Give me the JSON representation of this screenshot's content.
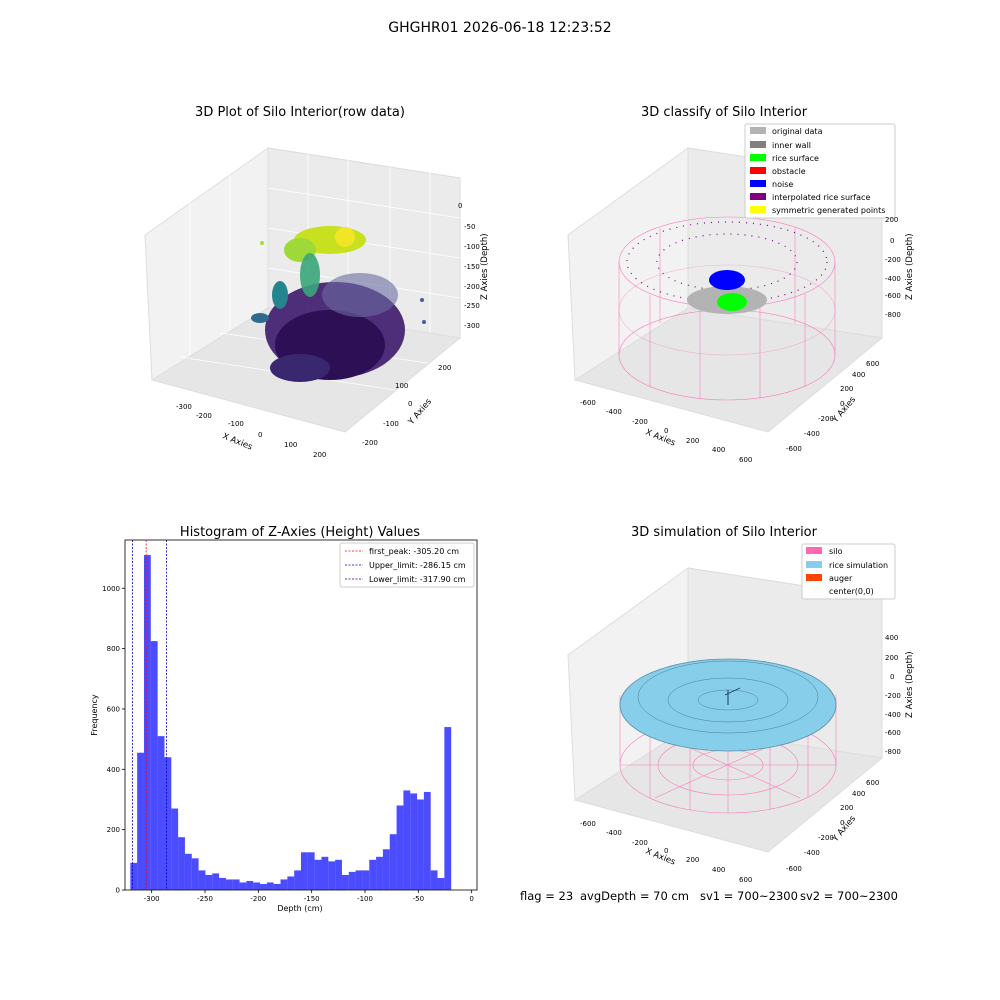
{
  "suptitle": "GHGHR01 2026-06-18 12:23:52",
  "status_text": {
    "flag": "flag = 23",
    "avg_depth": "avgDepth = 70 cm",
    "sv1": "sv1 = 700~2300",
    "sv2": "sv2 = 700~2300"
  },
  "panels": {
    "raw": {
      "title": "3D Plot of Silo Interior(row data)",
      "xlabel": "X Axies",
      "ylabel": "Y Axies",
      "zlabel": "Z Axies (Depth)",
      "xticks": [
        "-300",
        "-200",
        "-100",
        "0",
        "100",
        "200"
      ],
      "yticks": [
        "-200",
        "-100",
        "0",
        "100",
        "200"
      ],
      "zticks": [
        "0",
        "-50",
        "-100",
        "-150",
        "-200",
        "-250",
        "-300"
      ],
      "colormap": "viridis"
    },
    "classify": {
      "title": "3D classify of Silo Interior",
      "xlabel": "X Axies",
      "ylabel": "Y Axies",
      "zlabel": "Z Axies (Depth)",
      "xticks": [
        "-600",
        "-400",
        "-200",
        "0",
        "200",
        "400",
        "600"
      ],
      "yticks": [
        "-600",
        "-400",
        "-200",
        "0",
        "200",
        "400",
        "600"
      ],
      "zticks": [
        "200",
        "0",
        "-200",
        "-400",
        "-600",
        "-800"
      ],
      "legend": [
        {
          "label": "original data",
          "color": "#b3b3b3"
        },
        {
          "label": "inner wall",
          "color": "#808080"
        },
        {
          "label": "rice surface",
          "color": "#00ff00"
        },
        {
          "label": "obstacle",
          "color": "#ff0000"
        },
        {
          "label": "noise",
          "color": "#0000ff"
        },
        {
          "label": "interpolated rice surface",
          "color": "#800080"
        },
        {
          "label": "symmetric generated points",
          "color": "#ffff00"
        }
      ]
    },
    "simulation": {
      "title": "3D simulation of Silo Interior",
      "xlabel": "X Axies",
      "ylabel": "Y Axies",
      "zlabel": "Z Axies (Depth)",
      "xticks": [
        "-600",
        "-400",
        "-200",
        "0",
        "200",
        "400",
        "600"
      ],
      "yticks": [
        "-600",
        "-400",
        "-200",
        "0",
        "200",
        "400",
        "600"
      ],
      "zticks": [
        "400",
        "200",
        "0",
        "-200",
        "-400",
        "-600",
        "-800"
      ],
      "legend": [
        {
          "label": "silo",
          "color": "#ff69b4"
        },
        {
          "label": "rice simulation",
          "color": "#87ceeb"
        },
        {
          "label": "auger",
          "color": "#ff4500"
        },
        {
          "label": "center(0,0)",
          "color": ""
        }
      ]
    }
  },
  "chart_data": {
    "type": "bar",
    "title": "Histogram of Z-Axies (Height) Values",
    "xlabel": "Depth (cm)",
    "ylabel": "Frequency",
    "xlim": [
      -325,
      5
    ],
    "ylim": [
      0,
      1160
    ],
    "xticks": [
      -300,
      -250,
      -200,
      -150,
      -100,
      -50,
      0
    ],
    "yticks": [
      0,
      200,
      400,
      600,
      800,
      1000
    ],
    "bin_start": -320,
    "bin_width": 6.4,
    "values": [
      90,
      455,
      1110,
      825,
      510,
      440,
      270,
      175,
      120,
      105,
      65,
      50,
      55,
      40,
      35,
      35,
      25,
      30,
      25,
      20,
      25,
      20,
      35,
      45,
      65,
      125,
      125,
      100,
      110,
      95,
      100,
      50,
      60,
      65,
      65,
      100,
      110,
      135,
      185,
      280,
      330,
      320,
      300,
      325,
      65,
      40,
      540
    ],
    "bar_color": "#0000ff",
    "vlines": [
      {
        "label": "first_peak: -305.20 cm",
        "x": -305.2,
        "color": "#ff0000"
      },
      {
        "label": "Upper_limit: -286.15 cm",
        "x": -286.15,
        "color": "#0000cc"
      },
      {
        "label": "Lower_limit: -317.90 cm",
        "x": -317.9,
        "color": "#0000cc"
      }
    ],
    "legend_position": "upper right"
  }
}
